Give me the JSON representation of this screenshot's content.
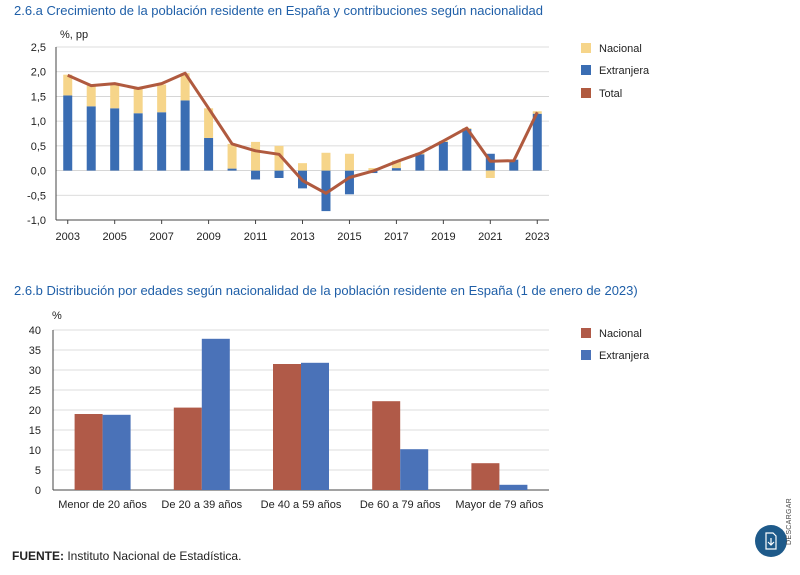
{
  "chart_data": [
    {
      "id": "a",
      "type": "bar",
      "title": "2.6.a  Crecimiento de la población residente en España y contribuciones según nacionalidad",
      "ylabel": "%, pp",
      "ylim": [
        -1.0,
        2.5
      ],
      "yticks": [
        "2,5",
        "2,0",
        "1,5",
        "1,0",
        "0,5",
        "0,0",
        "-0,5",
        "-1,0"
      ],
      "ytick_values": [
        2.5,
        2.0,
        1.5,
        1.0,
        0.5,
        0.0,
        -0.5,
        -1.0
      ],
      "categories": [
        "2003",
        "2004",
        "2005",
        "2006",
        "2007",
        "2008",
        "2009",
        "2010",
        "2011",
        "2012",
        "2013",
        "2014",
        "2015",
        "2016",
        "2017",
        "2018",
        "2019",
        "2020",
        "2021",
        "2022",
        "2023"
      ],
      "xtick_labels": [
        "2003",
        "2005",
        "2007",
        "2009",
        "2011",
        "2013",
        "2015",
        "2017",
        "2019",
        "2021",
        "2023"
      ],
      "series": [
        {
          "name": "Nacional",
          "color": "#f6d58a",
          "values": [
            0.42,
            0.42,
            0.5,
            0.5,
            0.56,
            0.55,
            0.6,
            0.5,
            0.58,
            0.5,
            0.15,
            0.36,
            0.34,
            0.05,
            0.15,
            0.03,
            0.02,
            0.02,
            -0.15,
            0.0,
            0.05
          ]
        },
        {
          "name": "Extranjera",
          "color": "#3a6db3",
          "values": [
            1.52,
            1.3,
            1.26,
            1.16,
            1.18,
            1.42,
            0.66,
            0.04,
            -0.18,
            -0.15,
            -0.36,
            -0.82,
            -0.48,
            -0.05,
            0.05,
            0.33,
            0.58,
            0.84,
            0.34,
            0.22,
            1.15
          ]
        },
        {
          "name": "Total",
          "color": "#b05a3f",
          "type": "line",
          "values": [
            1.93,
            1.72,
            1.76,
            1.66,
            1.76,
            1.97,
            1.26,
            0.54,
            0.4,
            0.33,
            -0.2,
            -0.46,
            -0.14,
            -0.01,
            0.18,
            0.35,
            0.6,
            0.86,
            0.19,
            0.2,
            1.18
          ]
        }
      ],
      "legend": [
        "Nacional",
        "Extranjera",
        "Total"
      ],
      "legend_position": "right"
    },
    {
      "id": "b",
      "type": "bar",
      "title": "2.6.b  Distribución por edades según nacionalidad de la población residente en España (1 de enero de 2023)",
      "ylabel": "%",
      "ylim": [
        0,
        40
      ],
      "yticks": [
        "40",
        "35",
        "30",
        "25",
        "20",
        "15",
        "10",
        "5",
        "0"
      ],
      "ytick_values": [
        40,
        35,
        30,
        25,
        20,
        15,
        10,
        5,
        0
      ],
      "categories": [
        "Menor de 20 años",
        "De 20 a 39 años",
        "De 40 a 59 años",
        "De 60 a 79 años",
        "Mayor de 79 años"
      ],
      "series": [
        {
          "name": "Nacional",
          "color": "#b05a48",
          "values": [
            19.0,
            20.6,
            31.5,
            22.2,
            6.7
          ]
        },
        {
          "name": "Extranjera",
          "color": "#4a72b8",
          "values": [
            18.8,
            37.8,
            31.8,
            10.2,
            1.3
          ]
        }
      ],
      "legend": [
        "Nacional",
        "Extranjera"
      ],
      "legend_position": "right"
    }
  ],
  "source": {
    "label": "FUENTE:",
    "text": " Instituto Nacional de Estadística."
  },
  "download": {
    "label": "DESCARGAR",
    "icon": "download-icon"
  }
}
